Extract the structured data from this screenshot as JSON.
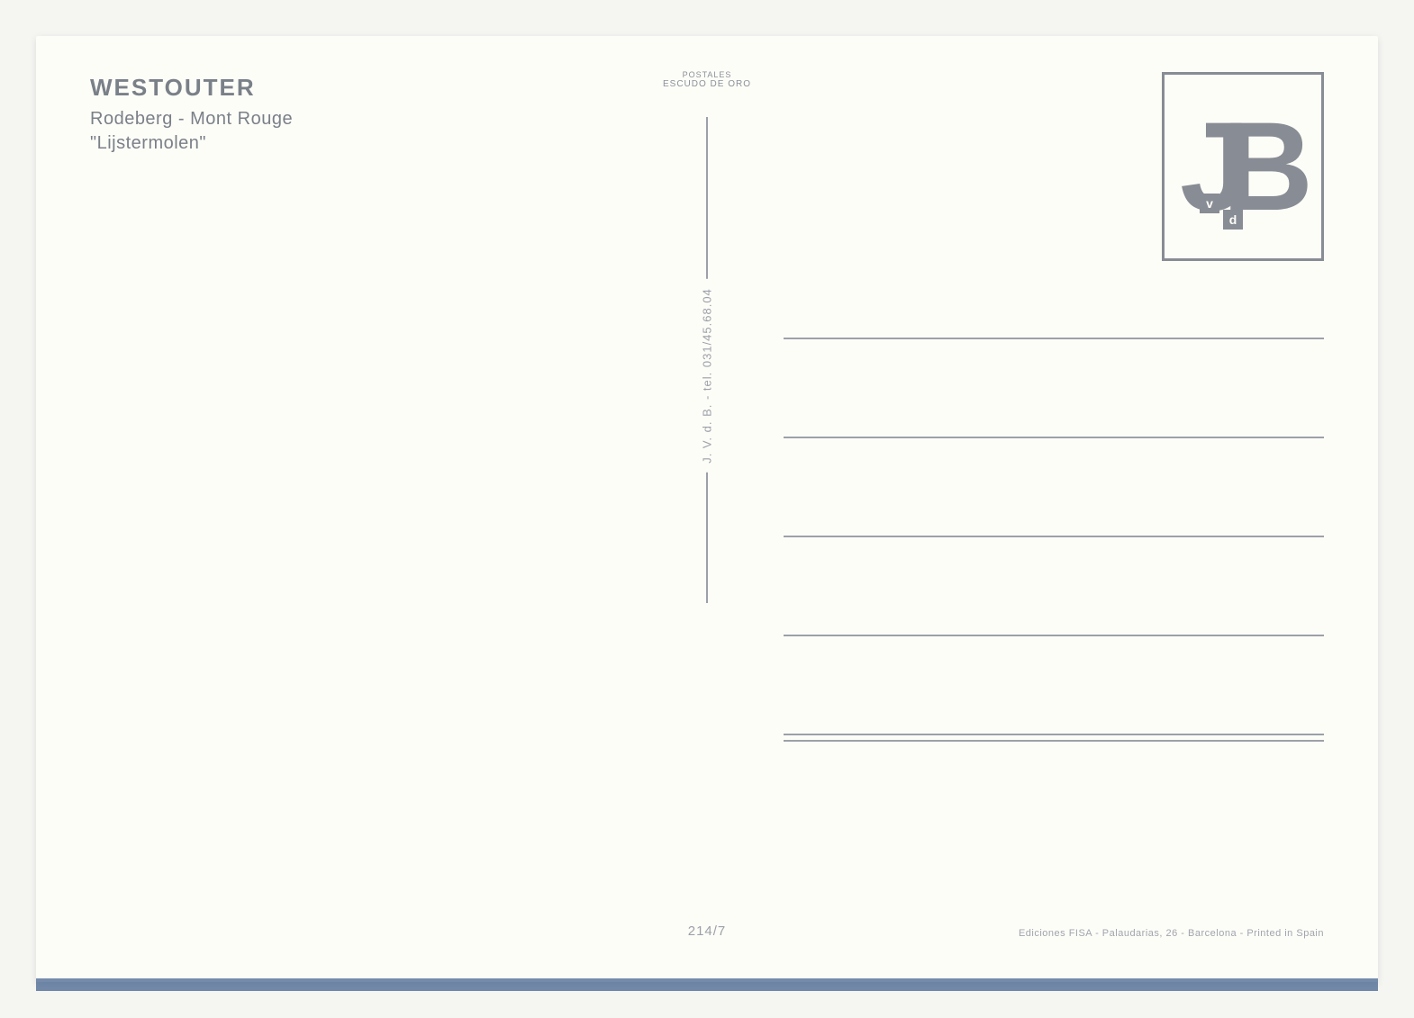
{
  "title": {
    "line1": "WESTOUTER",
    "line2": "Rodeberg - Mont Rouge",
    "line3": "\"Lijstermolen\""
  },
  "publisher_mark": {
    "line1": "POSTALES",
    "line2": "ESCUDO DE ORO",
    "line3": ""
  },
  "stamp_logo": {
    "letter_j": "J",
    "letter_b": "B",
    "letter_v": "v",
    "letter_d": "d"
  },
  "vertical_text": "J. V. d. B. - tel. 031/45.68.04",
  "card_number": "214/7",
  "printer_info": "Ediciones FISA - Palaudarias, 26 - Barcelona - Printed in Spain",
  "colors": {
    "frame_bg": "#f5f5f2",
    "card_bg": "#fdfdf8",
    "text_muted": "#7a8088",
    "line_color": "#9ca0a8",
    "logo_color": "#888c94",
    "shadow_color": "#3a5a8a"
  }
}
